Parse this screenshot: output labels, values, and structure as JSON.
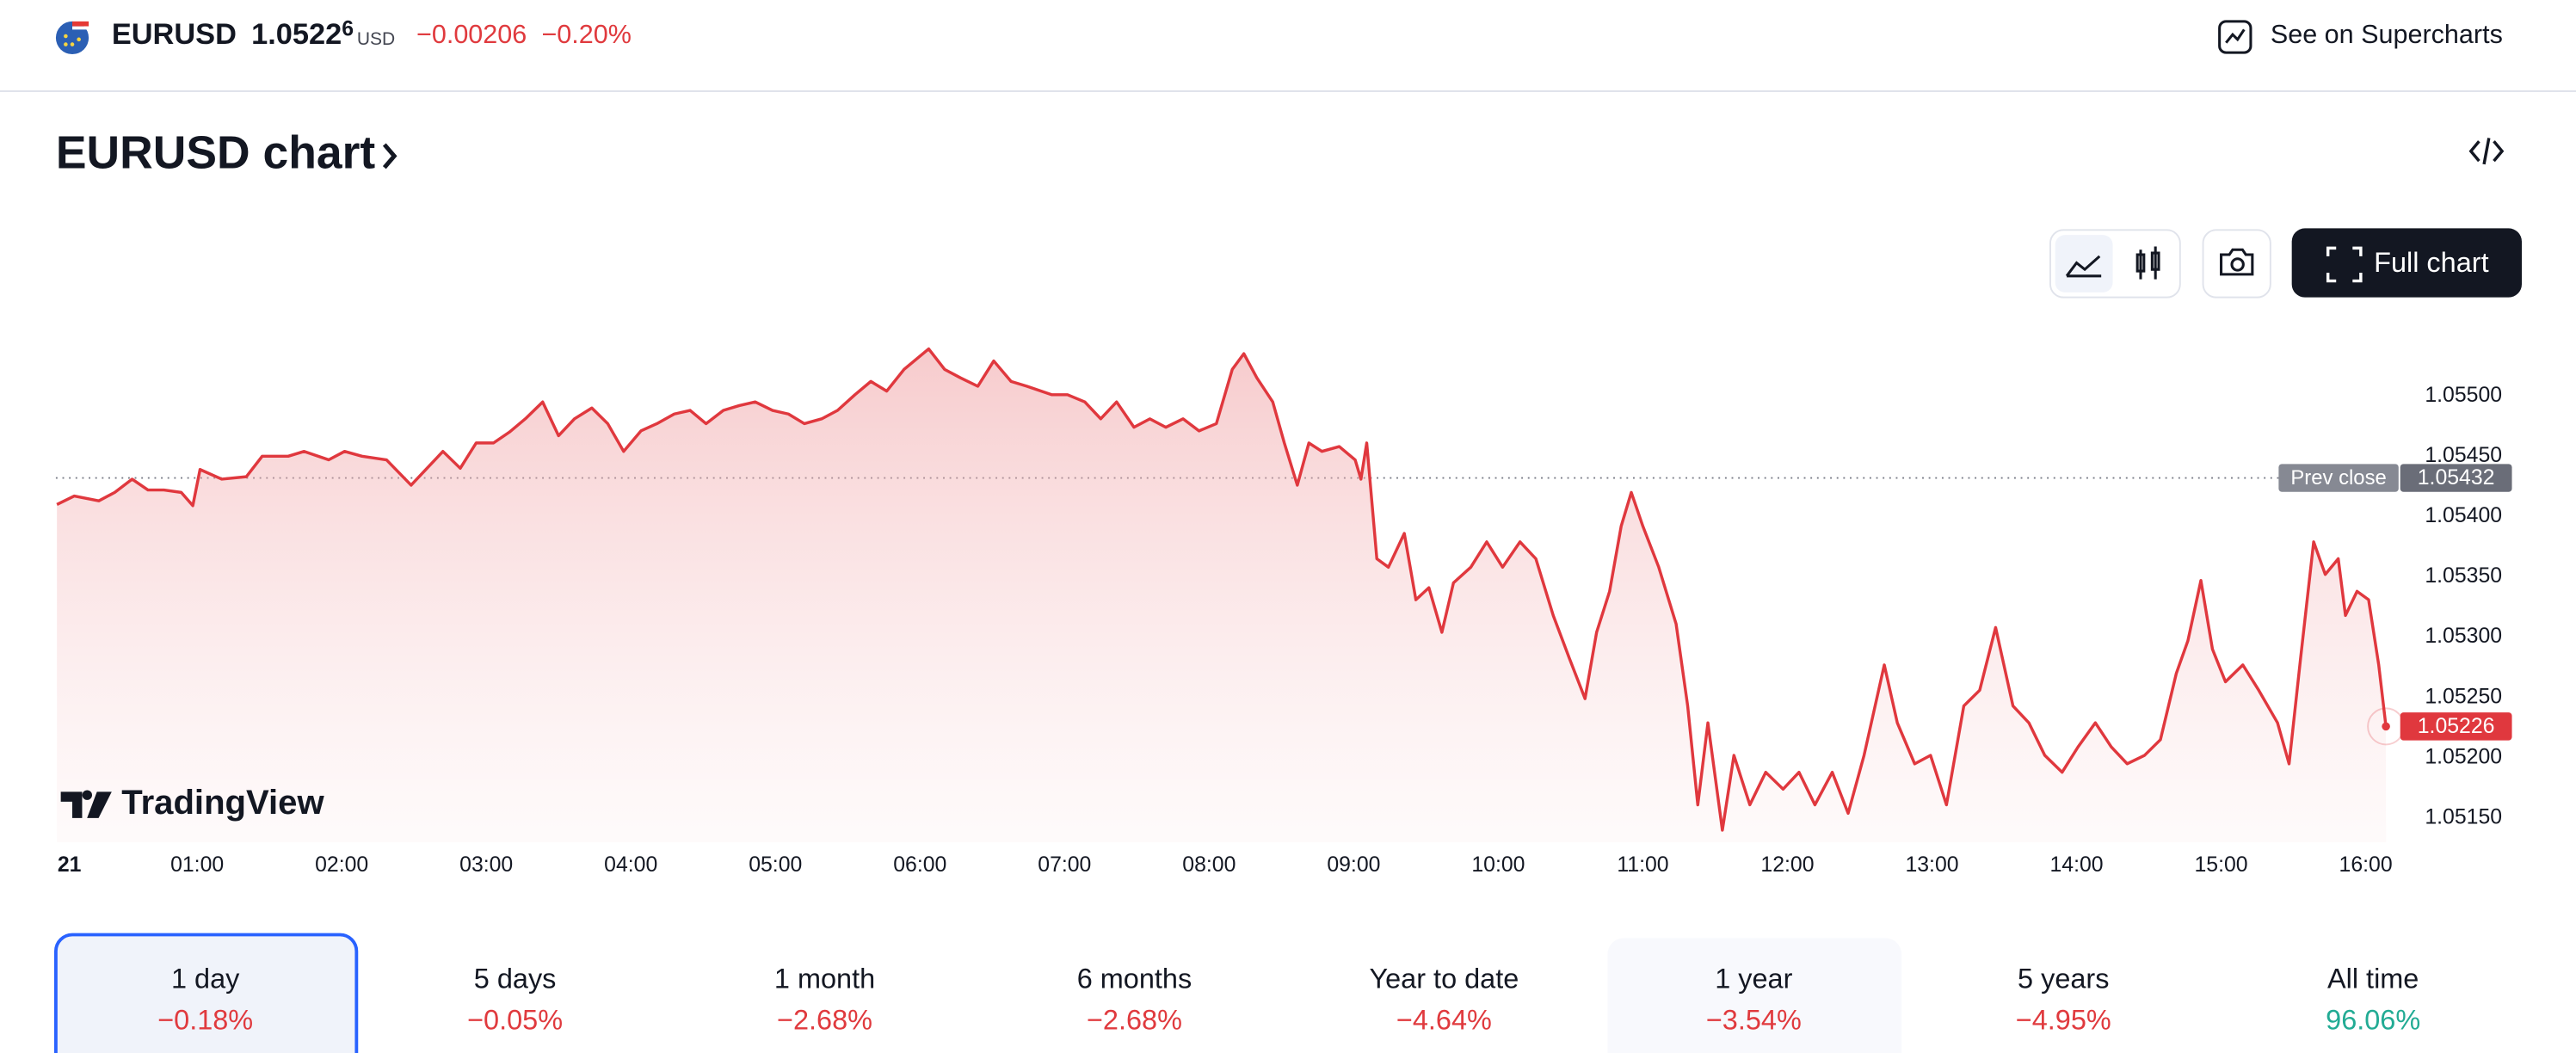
{
  "header": {
    "symbol": "EURUSD",
    "price": "1.0522",
    "price_fraction": "6",
    "currency": "USD",
    "change": "−0.00206",
    "change_percent": "−0.20%",
    "supercharts_link": "See on Supercharts"
  },
  "chart_title": "EURUSD chart",
  "full_chart_button": "Full chart",
  "chart_data": {
    "type": "area",
    "watermark": "TradingView",
    "color": "#e0383e",
    "x": [
      0.03,
      0.15,
      0.32,
      0.43,
      0.55,
      0.66,
      0.77,
      0.89,
      0.97,
      1.02,
      1.17,
      1.34,
      1.45,
      1.63,
      1.74,
      1.91,
      2.02,
      2.14,
      2.31,
      2.48,
      2.59,
      2.7,
      2.82,
      2.93,
      3.05,
      3.16,
      3.27,
      3.39,
      3.5,
      3.61,
      3.73,
      3.84,
      3.95,
      4.07,
      4.18,
      4.3,
      4.41,
      4.52,
      4.64,
      4.75,
      4.86,
      4.98,
      5.09,
      5.2,
      5.32,
      5.43,
      5.55,
      5.66,
      5.77,
      5.89,
      6.06,
      6.17,
      6.28,
      6.4,
      6.51,
      6.63,
      6.74,
      6.91,
      7.02,
      7.14,
      7.25,
      7.36,
      7.48,
      7.59,
      7.7,
      7.82,
      7.93,
      8.05,
      8.16,
      8.24,
      8.33,
      8.44,
      8.52,
      8.61,
      8.69,
      8.78,
      8.9,
      9.01,
      9.05,
      9.09,
      9.16,
      9.24,
      9.35,
      9.43,
      9.52,
      9.61,
      9.69,
      9.81,
      9.92,
      10.03,
      10.15,
      10.26,
      10.38,
      10.49,
      10.6,
      10.68,
      10.77,
      10.85,
      10.92,
      11.0,
      11.11,
      11.23,
      11.31,
      11.38,
      11.45,
      11.55,
      11.63,
      11.74,
      11.85,
      11.97,
      12.08,
      12.19,
      12.31,
      12.42,
      12.53,
      12.67,
      12.76,
      12.88,
      12.99,
      13.1,
      13.22,
      13.33,
      13.44,
      13.56,
      13.67,
      13.78,
      13.9,
      14.01,
      14.13,
      14.24,
      14.35,
      14.47,
      14.58,
      14.69,
      14.77,
      14.86,
      14.94,
      15.03,
      15.15,
      15.26,
      15.39,
      15.47,
      15.55,
      15.64,
      15.72,
      15.81,
      15.86,
      15.94,
      16.02,
      16.09,
      16.14
    ],
    "series": [
      {
        "color": "#e0383e",
        "values": [
          1.0541,
          1.05417,
          1.05413,
          1.0542,
          1.05431,
          1.05422,
          1.05422,
          1.0542,
          1.05409,
          1.05439,
          1.05431,
          1.05433,
          1.0545,
          1.0545,
          1.05454,
          1.05447,
          1.05454,
          1.0545,
          1.05447,
          1.05426,
          1.0544,
          1.05454,
          1.0544,
          1.05461,
          1.05461,
          1.0547,
          1.05481,
          1.05495,
          1.05467,
          1.05481,
          1.0549,
          1.05477,
          1.05454,
          1.05471,
          1.05477,
          1.05485,
          1.05488,
          1.05477,
          1.05488,
          1.05492,
          1.05495,
          1.05488,
          1.05485,
          1.05477,
          1.05481,
          1.05488,
          1.05501,
          1.05512,
          1.05504,
          1.05522,
          1.05539,
          1.05522,
          1.05515,
          1.05508,
          1.05529,
          1.05512,
          1.05508,
          1.05501,
          1.05501,
          1.05495,
          1.05481,
          1.05495,
          1.05474,
          1.05481,
          1.05474,
          1.05481,
          1.05471,
          1.05477,
          1.05522,
          1.05535,
          1.05515,
          1.05495,
          1.05461,
          1.05426,
          1.05461,
          1.05454,
          1.05458,
          1.05447,
          1.05431,
          1.05461,
          1.05365,
          1.05358,
          1.05386,
          1.05331,
          1.05341,
          1.05304,
          1.05345,
          1.05358,
          1.05379,
          1.05358,
          1.05379,
          1.05365,
          1.05318,
          1.05283,
          1.05249,
          1.05304,
          1.05338,
          1.05392,
          1.0542,
          1.05392,
          1.05358,
          1.05311,
          1.05243,
          1.05161,
          1.05229,
          1.0514,
          1.05202,
          1.05161,
          1.05188,
          1.05174,
          1.05188,
          1.05161,
          1.05188,
          1.05154,
          1.05202,
          1.05277,
          1.05229,
          1.05195,
          1.05202,
          1.05161,
          1.05243,
          1.05256,
          1.05308,
          1.05243,
          1.05229,
          1.05202,
          1.05188,
          1.05209,
          1.05229,
          1.05209,
          1.05195,
          1.05202,
          1.05215,
          1.0527,
          1.05297,
          1.05347,
          1.0529,
          1.05263,
          1.05277,
          1.05256,
          1.05229,
          1.05195,
          1.05283,
          1.05379,
          1.05352,
          1.05365,
          1.05318,
          1.05338,
          1.05331,
          1.05277,
          1.05226
        ]
      }
    ],
    "xlim": [
      0,
      16.2
    ],
    "xticks": [
      {
        "value": 0,
        "label": "21"
      },
      {
        "value": 1,
        "label": "01:00"
      },
      {
        "value": 2,
        "label": "02:00"
      },
      {
        "value": 3,
        "label": "03:00"
      },
      {
        "value": 4,
        "label": "04:00"
      },
      {
        "value": 5,
        "label": "05:00"
      },
      {
        "value": 6,
        "label": "06:00"
      },
      {
        "value": 7,
        "label": "07:00"
      },
      {
        "value": 8,
        "label": "08:00"
      },
      {
        "value": 9,
        "label": "09:00"
      },
      {
        "value": 10,
        "label": "10:00"
      },
      {
        "value": 11,
        "label": "11:00"
      },
      {
        "value": 12,
        "label": "12:00"
      },
      {
        "value": 13,
        "label": "13:00"
      },
      {
        "value": 14,
        "label": "14:00"
      },
      {
        "value": 15,
        "label": "15:00"
      },
      {
        "value": 16,
        "label": "16:00"
      }
    ],
    "ylim": [
      1.0513,
      1.0557
    ],
    "yticks": [
      {
        "value": 1.0515,
        "label": "1.05150"
      },
      {
        "value": 1.052,
        "label": "1.05200"
      },
      {
        "value": 1.0525,
        "label": "1.05250"
      },
      {
        "value": 1.053,
        "label": "1.05300"
      },
      {
        "value": 1.0535,
        "label": "1.05350"
      },
      {
        "value": 1.054,
        "label": "1.05400"
      },
      {
        "value": 1.0545,
        "label": "1.05450"
      },
      {
        "value": 1.055,
        "label": "1.05500"
      }
    ],
    "prev_close": {
      "label": "Prev close",
      "value": 1.05432
    },
    "last_price": 1.05226
  },
  "periods": [
    {
      "label": "1 day",
      "change": "−0.18%",
      "selected": true
    },
    {
      "label": "5 days",
      "change": "−0.05%"
    },
    {
      "label": "1 month",
      "change": "−2.68%"
    },
    {
      "label": "6 months",
      "change": "−2.68%"
    },
    {
      "label": "Year to date",
      "change": "−4.64%"
    },
    {
      "label": "1 year",
      "change": "−3.54%",
      "highlighted": true
    },
    {
      "label": "5 years",
      "change": "−4.95%"
    },
    {
      "label": "All time",
      "change": "96.06%"
    }
  ]
}
